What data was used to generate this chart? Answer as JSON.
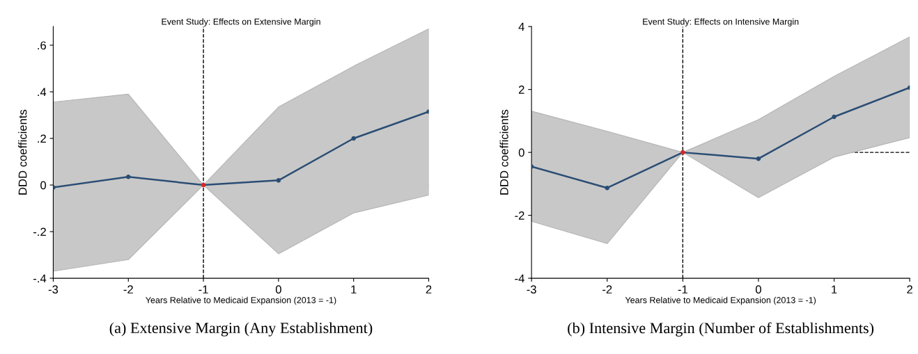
{
  "chart_data": [
    {
      "type": "line",
      "title": "Event Study: Effects on Extensive Margin",
      "xlabel": "Years Relative to Medicaid Expansion (2013 = -1)",
      "ylabel": "DDD coefficients",
      "x": [
        -3,
        -2,
        -1,
        0,
        1,
        2
      ],
      "series": [
        {
          "color": "#2a4d74",
          "colors": [
            "#2a4d74",
            "#2a4d74",
            "#d62728",
            "#2a4d74",
            "#2a4d74",
            "#2a4d74"
          ],
          "values": [
            -0.01,
            0.035,
            0,
            0.02,
            0.2,
            0.315
          ],
          "lower": [
            -0.37,
            -0.32,
            0,
            -0.295,
            -0.12,
            -0.043
          ],
          "upper": [
            0.356,
            0.39,
            0,
            0.335,
            0.51,
            0.67
          ]
        }
      ],
      "xlim": [
        -3,
        2
      ],
      "xticks": [
        -3,
        -2,
        -1,
        0,
        1,
        2
      ],
      "ylim": [
        -0.4,
        0.68
      ],
      "yticks": [
        {
          "value": -0.4,
          "label": "-.4"
        },
        {
          "value": -0.2,
          "label": "-.2"
        },
        0,
        {
          "value": 0.2,
          "label": ".2"
        },
        {
          "value": 0.4,
          "label": ".4"
        },
        {
          "value": 0.6,
          "label": ".6"
        }
      ],
      "ref_lines": [
        {
          "axis": "x",
          "value": -1,
          "line_style": "dashed",
          "color": "#000000"
        },
        {
          "axis": "y",
          "value": 0,
          "line_style": "dashed",
          "color": "#000000"
        }
      ],
      "marker": "circle",
      "grid": false,
      "annotations": [
        "(a) Extensive Margin (Any Establishment)"
      ]
    },
    {
      "type": "line",
      "title": "Event Study: Effects on Intensive Margin",
      "xlabel": "Years Relative to Medicaid Expansion (2013 = -1)",
      "ylabel": "DDD coefficients",
      "x": [
        -3,
        -2,
        -1,
        0,
        1,
        2
      ],
      "series": [
        {
          "color": "#2a4d74",
          "colors": [
            "#2a4d74",
            "#2a4d74",
            "#d62728",
            "#2a4d74",
            "#2a4d74",
            "#2a4d74"
          ],
          "values": [
            -0.45,
            -1.13,
            0,
            -0.2,
            1.13,
            2.06
          ],
          "lower": [
            -2.19,
            -2.9,
            0,
            -1.44,
            -0.15,
            0.47
          ],
          "upper": [
            1.31,
            0.67,
            0,
            1.04,
            2.42,
            3.67
          ]
        }
      ],
      "xlim": [
        -3,
        2
      ],
      "xticks": [
        -3,
        -2,
        -1,
        0,
        1,
        2
      ],
      "ylim": [
        -4,
        4
      ],
      "yticks": [
        -4,
        -2,
        0,
        2,
        4
      ],
      "ref_lines": [
        {
          "axis": "x",
          "value": -1,
          "line_style": "dashed",
          "color": "#000000"
        },
        {
          "axis": "y",
          "value": 0,
          "line_style": "dashed",
          "color": "#000000"
        }
      ],
      "marker": "circle",
      "grid": false,
      "annotations": [
        "(b) Intensive Margin (Number of Establishments)"
      ]
    }
  ]
}
